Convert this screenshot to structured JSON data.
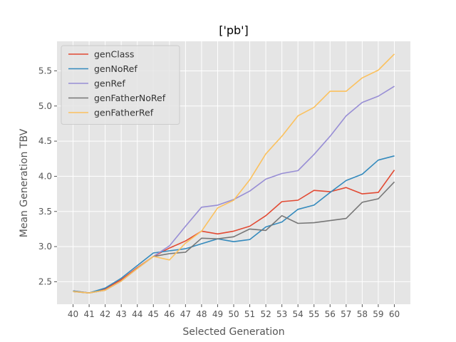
{
  "chart_data": {
    "type": "line",
    "title": "['pb']",
    "xlabel": "Selected Generation",
    "ylabel": "Mean Generation TBV",
    "x": [
      40,
      41,
      42,
      43,
      44,
      45,
      46,
      47,
      48,
      49,
      50,
      51,
      52,
      53,
      54,
      55,
      56,
      57,
      58,
      59,
      60
    ],
    "xticks": [
      "40",
      "41",
      "42",
      "43",
      "44",
      "45",
      "46",
      "47",
      "48",
      "49",
      "50",
      "51",
      "52",
      "53",
      "54",
      "55",
      "56",
      "57",
      "58",
      "59",
      "60"
    ],
    "ylim": [
      2.18,
      5.92
    ],
    "yticks": [
      2.5,
      3.0,
      3.5,
      4.0,
      4.5,
      5.0,
      5.5
    ],
    "ytick_labels": [
      "2.5",
      "3.0",
      "3.5",
      "4.0",
      "4.5",
      "5.0",
      "5.5"
    ],
    "grid": true,
    "legend_position": "top-left",
    "series": [
      {
        "name": "genClass",
        "color": "#E24A33",
        "values": [
          2.37,
          2.34,
          2.4,
          2.53,
          2.7,
          2.86,
          2.98,
          3.08,
          3.22,
          3.18,
          3.22,
          3.29,
          3.44,
          3.64,
          3.66,
          3.8,
          3.78,
          3.84,
          3.75,
          3.77,
          4.09
        ]
      },
      {
        "name": "genNoRef",
        "color": "#348ABD",
        "values": [
          2.37,
          2.34,
          2.41,
          2.55,
          2.73,
          2.91,
          2.94,
          2.97,
          3.04,
          3.11,
          3.07,
          3.1,
          3.28,
          3.35,
          3.53,
          3.59,
          3.77,
          3.94,
          4.03,
          4.23,
          4.29
        ]
      },
      {
        "name": "genRef",
        "color": "#988ED5",
        "values": [
          2.36,
          2.34,
          2.38,
          2.51,
          2.69,
          2.86,
          3.01,
          3.29,
          3.56,
          3.59,
          3.67,
          3.79,
          3.96,
          4.04,
          4.08,
          4.31,
          4.57,
          4.86,
          5.05,
          5.14,
          5.28
        ]
      },
      {
        "name": "genFatherNoRef",
        "color": "#777777",
        "values": [
          2.36,
          2.34,
          2.38,
          2.51,
          2.69,
          2.86,
          2.9,
          2.92,
          3.12,
          3.11,
          3.14,
          3.25,
          3.23,
          3.44,
          3.33,
          3.34,
          3.37,
          3.4,
          3.63,
          3.68,
          3.92
        ]
      },
      {
        "name": "genFatherRef",
        "color": "#FBC15E",
        "values": [
          2.36,
          2.34,
          2.38,
          2.51,
          2.69,
          2.86,
          2.81,
          3.05,
          3.22,
          3.55,
          3.66,
          3.95,
          4.32,
          4.57,
          4.86,
          4.98,
          5.21,
          5.21,
          5.4,
          5.51,
          5.74
        ]
      }
    ]
  }
}
